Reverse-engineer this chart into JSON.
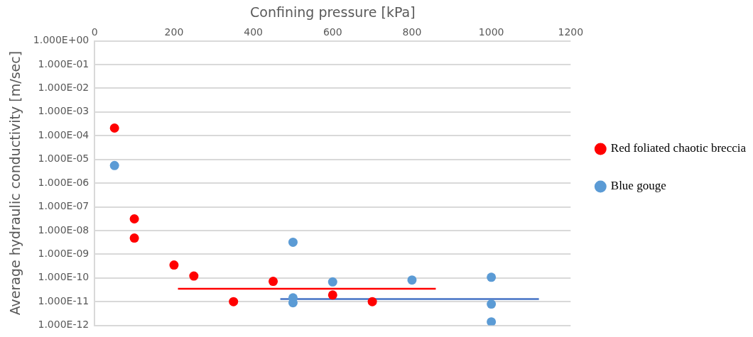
{
  "chart_data": {
    "type": "scatter",
    "xlabel": "Confining pressure [kPa]",
    "ylabel": "Average hydraulic conductivity [m/sec]",
    "log": "y",
    "grid": "y",
    "legend": "right",
    "marker": "circle",
    "xlim": [
      0,
      1200
    ],
    "xticks": [
      0,
      200,
      400,
      600,
      800,
      1000,
      1200
    ],
    "ylim": [
      1e-12,
      1
    ],
    "yticks": [
      {
        "value": 1,
        "label": "1.000E+00"
      },
      {
        "value": 0.1,
        "label": "1.000E-01"
      },
      {
        "value": 0.01,
        "label": "1.000E-02"
      },
      {
        "value": 0.001,
        "label": "1.000E-03"
      },
      {
        "value": 0.0001,
        "label": "1.000E-04"
      },
      {
        "value": 1e-05,
        "label": "1.000E-05"
      },
      {
        "value": 1e-06,
        "label": "1.000E-06"
      },
      {
        "value": 1e-07,
        "label": "1.000E-07"
      },
      {
        "value": 1e-08,
        "label": "1.000E-08"
      },
      {
        "value": 1e-09,
        "label": "1.000E-09"
      },
      {
        "value": 1e-10,
        "label": "1.000E-10"
      },
      {
        "value": 1e-11,
        "label": "1.000E-11"
      },
      {
        "value": 1e-12,
        "label": "1.000E-12"
      }
    ],
    "series": [
      {
        "name": "Red foliated chaotic breccia",
        "color": "#ff0000",
        "x": [
          50,
          100,
          100,
          200,
          250,
          350,
          450,
          600,
          700
        ],
        "values": [
          0.00021,
          3.1e-08,
          4.8e-09,
          3.5e-10,
          1.2e-10,
          1e-11,
          7.2e-11,
          1.9e-11,
          1e-11
        ]
      },
      {
        "name": "Blue gouge",
        "color": "#5b9bd5",
        "x": [
          50,
          500,
          500,
          500,
          600,
          800,
          1000,
          1000,
          1000
        ],
        "values": [
          5.5e-06,
          3.2e-09,
          1.45e-11,
          9e-12,
          6.8e-11,
          8.2e-11,
          1.07e-10,
          7.9e-12,
          1.4e-12
        ]
      },
      {
        "type": "line",
        "marker": "none",
        "color": "#ff0000",
        "x": [
          210,
          860
        ],
        "values": [
          3.5e-11,
          3.5e-11
        ]
      },
      {
        "type": "line",
        "marker": "none",
        "color": "#4472c4",
        "x": [
          468,
          1120
        ],
        "values": [
          1.3e-11,
          1.3e-11
        ]
      }
    ]
  }
}
